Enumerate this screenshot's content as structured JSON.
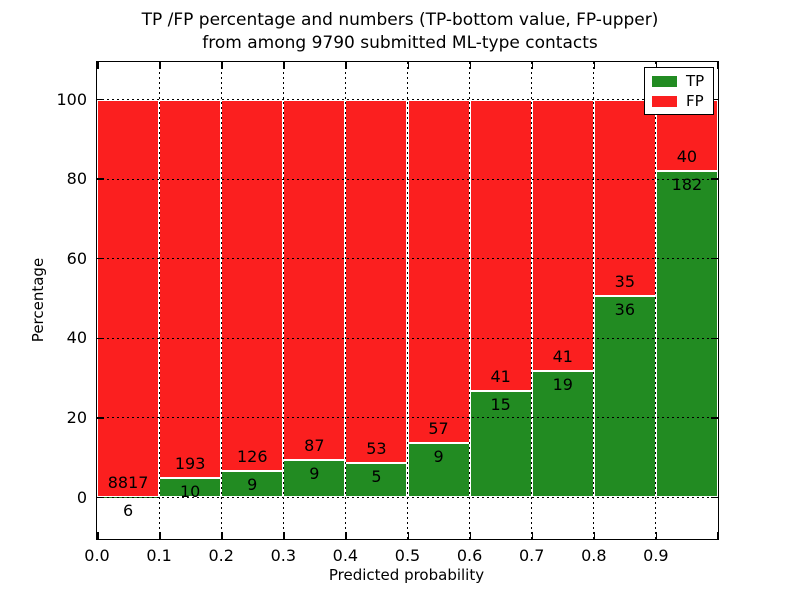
{
  "title": {
    "line1": "TP /FP percentage and numbers (TP-bottom value, FP-upper)",
    "line2": "from among 9790 submitted ML-type contacts"
  },
  "axes": {
    "xlabel": "Predicted probability",
    "ylabel": "Percentage",
    "x_ticks": [
      "0.0",
      "0.1",
      "0.2",
      "0.3",
      "0.4",
      "0.5",
      "0.6",
      "0.7",
      "0.8",
      "0.9"
    ],
    "y_ticks": [
      "0",
      "20",
      "40",
      "60",
      "80",
      "100"
    ]
  },
  "legend": {
    "position": "upper right",
    "items": [
      {
        "label": "TP",
        "color": "#228B22"
      },
      {
        "label": "FP",
        "color": "#FB1F1F"
      }
    ]
  },
  "chart_data": {
    "type": "bar",
    "stacked": true,
    "normalized": "each bin stacks to 100%",
    "title": "TP /FP percentage and numbers (TP-bottom value, FP-upper) from among 9790 submitted ML-type contacts",
    "xlabel": "Predicted probability",
    "ylabel": "Percentage",
    "categories": [
      "0.0-0.1",
      "0.1-0.2",
      "0.2-0.3",
      "0.3-0.4",
      "0.4-0.5",
      "0.5-0.6",
      "0.6-0.7",
      "0.7-0.8",
      "0.8-0.9",
      "0.9-1.0"
    ],
    "bin_starts": [
      0.0,
      0.1,
      0.2,
      0.3,
      0.4,
      0.5,
      0.6,
      0.7,
      0.8,
      0.9
    ],
    "bin_width": 0.1,
    "series": [
      {
        "name": "TP",
        "color": "#228B22",
        "counts": [
          6,
          10,
          9,
          9,
          5,
          9,
          15,
          19,
          36,
          182
        ],
        "percent": [
          0.07,
          4.93,
          6.67,
          9.38,
          8.62,
          13.64,
          26.79,
          31.67,
          50.7,
          81.98
        ]
      },
      {
        "name": "FP",
        "color": "#FB1F1F",
        "counts": [
          8817,
          193,
          126,
          87,
          53,
          57,
          41,
          41,
          35,
          40
        ],
        "percent": [
          99.93,
          95.07,
          93.33,
          90.62,
          91.38,
          86.36,
          73.21,
          68.33,
          49.3,
          18.02
        ]
      }
    ],
    "total_contacts": 9790,
    "xlim": [
      0.0,
      1.0
    ],
    "ylim": [
      -10.7,
      109.6
    ],
    "grid": true,
    "grid_style": "dotted",
    "legend_position": "upper right",
    "bar_labels_note": "TP count printed just below the TP/FP boundary, FP count printed just above it"
  }
}
